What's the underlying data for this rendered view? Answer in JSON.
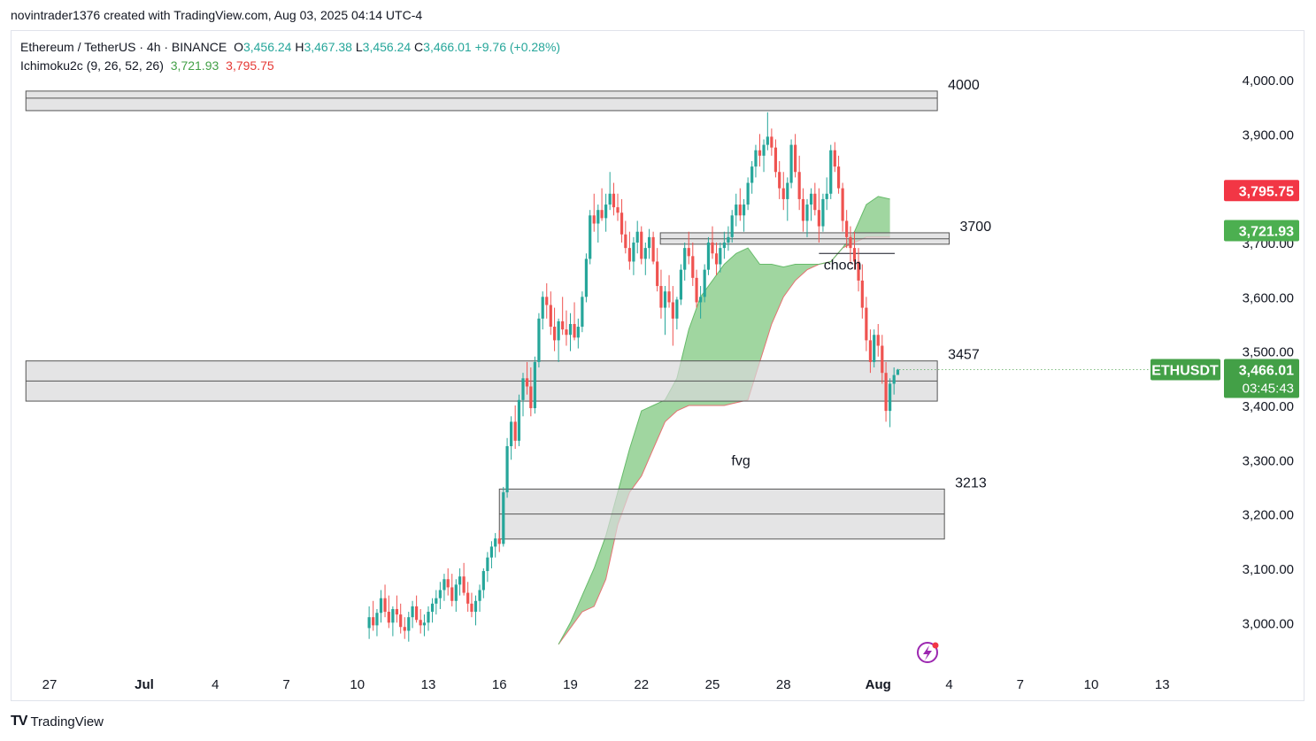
{
  "header": {
    "author_line": "novintrader1376 created with TradingView.com, Aug 03, 2025 04:14 UTC-4"
  },
  "legend": {
    "symbol": "Ethereum / TetherUS · 4h · BINANCE",
    "o_label": "O",
    "o": "3,456.24",
    "h_label": "H",
    "h": "3,467.38",
    "l_label": "L",
    "l": "3,456.24",
    "c_label": "C",
    "c": "3,466.01",
    "change": "+9.76 (+0.28%)",
    "indicator": "Ichimoku2c (9, 26, 52, 26)",
    "ind_val1": "3,721.93",
    "ind_val2": "3,795.75"
  },
  "footer": {
    "logo": "TV",
    "brand": "TradingView"
  },
  "colors": {
    "up": "#26a69a",
    "down": "#ef5350",
    "cloud": "#8fcf8f",
    "span_b": "#e57373",
    "zone_fill": "#d8d8da",
    "zone_border": "#555555"
  },
  "chart_data": {
    "type": "candlestick",
    "timeframe": "4h",
    "ylim": [
      2920,
      4110
    ],
    "y_ticks": [
      "4,000.00",
      "3,900.00",
      "3,800.00",
      "3,700.00",
      "3,600.00",
      "3,500.00",
      "3,400.00",
      "3,300.00",
      "3,200.00",
      "3,100.00",
      "3,000.00"
    ],
    "y_tick_values": [
      4000,
      3900,
      3800,
      3700,
      3600,
      3500,
      3400,
      3300,
      3200,
      3100,
      3000
    ],
    "x_ticks": [
      "27",
      "Jul",
      "4",
      "7",
      "10",
      "13",
      "16",
      "19",
      "22",
      "25",
      "28",
      "Aug",
      "4",
      "7",
      "10",
      "13"
    ],
    "x_tick_days": [
      -4,
      0,
      3,
      6,
      9,
      12,
      15,
      18,
      21,
      24,
      27,
      31,
      34,
      37,
      40,
      43
    ],
    "price_tags": [
      {
        "label": "3,795.75",
        "value": 3795.75,
        "color": "#f23645"
      },
      {
        "label": "3,721.93",
        "value": 3721.93,
        "color": "#4caf50"
      }
    ],
    "last_price": {
      "symbol": "ETHUSDT",
      "price": "3,466.01",
      "countdown": "03:45:43",
      "value": 3466.01,
      "color": "#43a047"
    },
    "zones": [
      {
        "label": "4000",
        "top": 3979,
        "bottom": 3943,
        "mid": 3966,
        "day_start": -5,
        "day_end": 33.5
      },
      {
        "label": "3700",
        "top": 3718,
        "bottom": 3697,
        "mid": 3707,
        "day_start": 21.8,
        "day_end": 34
      },
      {
        "label": "3457",
        "top": 3482,
        "bottom": 3408,
        "mid": 3445,
        "day_start": -5,
        "day_end": 33.5
      },
      {
        "label": "3213",
        "top": 3246,
        "bottom": 3154,
        "mid": 3200,
        "day_start": 15,
        "day_end": 33.8
      }
    ],
    "annotations": [
      {
        "text": "choch",
        "day": 28.7,
        "price": 3650
      },
      {
        "text": "fvg",
        "day": 24.8,
        "price": 3290
      }
    ],
    "choch_line": {
      "price": 3680,
      "day_start": 28.5,
      "day_end": 31.7
    },
    "candles": [
      [
        9.5,
        2990,
        3030,
        2970,
        3010
      ],
      [
        9.67,
        3010,
        3040,
        2985,
        2995
      ],
      [
        9.83,
        2995,
        3025,
        2975,
        3018
      ],
      [
        10.0,
        3018,
        3060,
        3000,
        3045
      ],
      [
        10.17,
        3045,
        3070,
        3010,
        3020
      ],
      [
        10.33,
        3020,
        3050,
        2990,
        3000
      ],
      [
        10.5,
        3000,
        3030,
        2975,
        3025
      ],
      [
        10.67,
        3025,
        3050,
        3000,
        3015
      ],
      [
        10.83,
        3015,
        3035,
        2980,
        2992
      ],
      [
        11.0,
        2992,
        3010,
        2970,
        2985
      ],
      [
        11.17,
        2985,
        3020,
        2965,
        3010
      ],
      [
        11.33,
        3010,
        3040,
        2990,
        3030
      ],
      [
        11.5,
        3030,
        3050,
        3000,
        3005
      ],
      [
        11.67,
        3005,
        3025,
        2980,
        2995
      ],
      [
        11.83,
        2995,
        3015,
        2975,
        3000
      ],
      [
        12.0,
        3000,
        3030,
        2985,
        3020
      ],
      [
        12.17,
        3020,
        3045,
        3000,
        3035
      ],
      [
        12.33,
        3035,
        3060,
        3015,
        3045
      ],
      [
        12.5,
        3045,
        3075,
        3025,
        3060
      ],
      [
        12.67,
        3060,
        3090,
        3040,
        3080
      ],
      [
        12.83,
        3080,
        3100,
        3050,
        3065
      ],
      [
        13.0,
        3065,
        3090,
        3030,
        3040
      ],
      [
        13.17,
        3040,
        3080,
        3020,
        3070
      ],
      [
        13.33,
        3070,
        3100,
        3050,
        3085
      ],
      [
        13.5,
        3085,
        3110,
        3050,
        3055
      ],
      [
        13.67,
        3055,
        3075,
        3020,
        3035
      ],
      [
        13.83,
        3035,
        3055,
        3010,
        3020
      ],
      [
        14.0,
        3020,
        3050,
        2995,
        3040
      ],
      [
        14.17,
        3040,
        3070,
        3020,
        3060
      ],
      [
        14.33,
        3060,
        3100,
        3045,
        3095
      ],
      [
        14.5,
        3095,
        3130,
        3075,
        3120
      ],
      [
        14.67,
        3120,
        3150,
        3100,
        3140
      ],
      [
        14.83,
        3140,
        3165,
        3120,
        3155
      ],
      [
        15.0,
        3155,
        3170,
        3130,
        3145
      ],
      [
        15.17,
        3145,
        3250,
        3140,
        3240
      ],
      [
        15.33,
        3240,
        3340,
        3230,
        3325
      ],
      [
        15.5,
        3325,
        3380,
        3300,
        3370
      ],
      [
        15.67,
        3370,
        3400,
        3320,
        3335
      ],
      [
        15.83,
        3335,
        3420,
        3325,
        3410
      ],
      [
        16.0,
        3410,
        3460,
        3380,
        3450
      ],
      [
        16.17,
        3450,
        3480,
        3420,
        3435
      ],
      [
        16.33,
        3435,
        3470,
        3380,
        3395
      ],
      [
        16.5,
        3395,
        3490,
        3385,
        3480
      ],
      [
        16.67,
        3480,
        3570,
        3470,
        3560
      ],
      [
        16.83,
        3560,
        3610,
        3540,
        3600
      ],
      [
        17.0,
        3600,
        3625,
        3560,
        3585
      ],
      [
        17.17,
        3585,
        3610,
        3530,
        3545
      ],
      [
        17.33,
        3545,
        3580,
        3500,
        3520
      ],
      [
        17.5,
        3520,
        3560,
        3480,
        3555
      ],
      [
        17.67,
        3555,
        3600,
        3530,
        3540
      ],
      [
        17.83,
        3540,
        3575,
        3510,
        3530
      ],
      [
        18.0,
        3530,
        3570,
        3500,
        3550
      ],
      [
        18.17,
        3550,
        3590,
        3520,
        3525
      ],
      [
        18.33,
        3525,
        3560,
        3505,
        3545
      ],
      [
        18.5,
        3545,
        3610,
        3535,
        3600
      ],
      [
        18.67,
        3600,
        3680,
        3590,
        3670
      ],
      [
        18.83,
        3670,
        3760,
        3660,
        3750
      ],
      [
        19.0,
        3750,
        3790,
        3720,
        3735
      ],
      [
        19.17,
        3735,
        3770,
        3700,
        3760
      ],
      [
        19.33,
        3760,
        3800,
        3740,
        3745
      ],
      [
        19.5,
        3745,
        3790,
        3720,
        3770
      ],
      [
        19.67,
        3770,
        3830,
        3760,
        3790
      ],
      [
        19.83,
        3790,
        3810,
        3750,
        3765
      ],
      [
        20.0,
        3765,
        3790,
        3740,
        3755
      ],
      [
        20.17,
        3755,
        3780,
        3700,
        3715
      ],
      [
        20.33,
        3715,
        3740,
        3680,
        3690
      ],
      [
        20.5,
        3690,
        3720,
        3650,
        3665
      ],
      [
        20.67,
        3665,
        3710,
        3640,
        3700
      ],
      [
        20.83,
        3700,
        3740,
        3680,
        3720
      ],
      [
        21.0,
        3720,
        3730,
        3660,
        3670
      ],
      [
        21.17,
        3670,
        3700,
        3640,
        3690
      ],
      [
        21.33,
        3690,
        3725,
        3670,
        3710
      ],
      [
        21.5,
        3710,
        3720,
        3660,
        3665
      ],
      [
        21.67,
        3665,
        3690,
        3610,
        3620
      ],
      [
        21.83,
        3620,
        3650,
        3560,
        3580
      ],
      [
        22.0,
        3580,
        3620,
        3530,
        3610
      ],
      [
        22.17,
        3610,
        3640,
        3580,
        3590
      ],
      [
        22.33,
        3590,
        3620,
        3510,
        3560
      ],
      [
        22.5,
        3560,
        3600,
        3540,
        3595
      ],
      [
        22.67,
        3595,
        3660,
        3585,
        3650
      ],
      [
        22.83,
        3650,
        3700,
        3630,
        3690
      ],
      [
        23.0,
        3690,
        3720,
        3660,
        3675
      ],
      [
        23.17,
        3675,
        3700,
        3620,
        3635
      ],
      [
        23.33,
        3635,
        3650,
        3580,
        3590
      ],
      [
        23.5,
        3590,
        3620,
        3560,
        3600
      ],
      [
        23.67,
        3600,
        3660,
        3590,
        3650
      ],
      [
        23.83,
        3650,
        3710,
        3640,
        3700
      ],
      [
        24.0,
        3700,
        3730,
        3670,
        3680
      ],
      [
        24.17,
        3680,
        3700,
        3640,
        3660
      ],
      [
        24.33,
        3660,
        3700,
        3645,
        3690
      ],
      [
        24.5,
        3690,
        3720,
        3670,
        3700
      ],
      [
        24.67,
        3700,
        3730,
        3685,
        3710
      ],
      [
        24.83,
        3710,
        3760,
        3700,
        3750
      ],
      [
        25.0,
        3750,
        3790,
        3730,
        3770
      ],
      [
        25.17,
        3770,
        3800,
        3740,
        3750
      ],
      [
        25.33,
        3750,
        3780,
        3720,
        3770
      ],
      [
        25.5,
        3770,
        3820,
        3760,
        3810
      ],
      [
        25.67,
        3810,
        3850,
        3790,
        3840
      ],
      [
        25.83,
        3840,
        3880,
        3820,
        3870
      ],
      [
        26.0,
        3870,
        3900,
        3840,
        3860
      ],
      [
        26.17,
        3860,
        3890,
        3830,
        3880
      ],
      [
        26.33,
        3880,
        3940,
        3870,
        3895
      ],
      [
        26.5,
        3895,
        3910,
        3860,
        3875
      ],
      [
        26.67,
        3875,
        3890,
        3820,
        3830
      ],
      [
        26.83,
        3830,
        3850,
        3780,
        3800
      ],
      [
        27.0,
        3800,
        3830,
        3760,
        3780
      ],
      [
        27.17,
        3780,
        3820,
        3740,
        3810
      ],
      [
        27.33,
        3810,
        3890,
        3800,
        3880
      ],
      [
        27.5,
        3880,
        3900,
        3820,
        3830
      ],
      [
        27.67,
        3830,
        3860,
        3760,
        3780
      ],
      [
        27.83,
        3780,
        3800,
        3720,
        3740
      ],
      [
        28.0,
        3740,
        3780,
        3710,
        3770
      ],
      [
        28.17,
        3770,
        3800,
        3740,
        3790
      ],
      [
        28.33,
        3790,
        3810,
        3750,
        3760
      ],
      [
        28.5,
        3760,
        3800,
        3700,
        3730
      ],
      [
        28.67,
        3730,
        3790,
        3720,
        3780
      ],
      [
        28.83,
        3780,
        3820,
        3760,
        3790
      ],
      [
        29.0,
        3790,
        3880,
        3780,
        3870
      ],
      [
        29.17,
        3870,
        3885,
        3830,
        3840
      ],
      [
        29.33,
        3840,
        3860,
        3790,
        3800
      ],
      [
        29.5,
        3800,
        3810,
        3720,
        3740
      ],
      [
        29.67,
        3740,
        3760,
        3690,
        3710
      ],
      [
        29.83,
        3710,
        3730,
        3660,
        3690
      ],
      [
        30.0,
        3690,
        3720,
        3650,
        3665
      ],
      [
        30.17,
        3665,
        3690,
        3610,
        3630
      ],
      [
        30.33,
        3630,
        3660,
        3560,
        3580
      ],
      [
        30.5,
        3580,
        3600,
        3500,
        3520
      ],
      [
        30.67,
        3520,
        3540,
        3460,
        3480
      ],
      [
        30.83,
        3480,
        3540,
        3470,
        3530
      ],
      [
        31.0,
        3530,
        3550,
        3490,
        3510
      ],
      [
        31.17,
        3510,
        3530,
        3440,
        3460
      ],
      [
        31.33,
        3460,
        3480,
        3370,
        3390
      ],
      [
        31.5,
        3390,
        3450,
        3360,
        3440
      ],
      [
        31.67,
        3440,
        3470,
        3420,
        3456
      ],
      [
        31.83,
        3456.24,
        3467.38,
        3456.24,
        3466.01
      ]
    ],
    "cloud": {
      "span_a": [
        [
          17.5,
          2960
        ],
        [
          18.0,
          3000
        ],
        [
          18.5,
          3050
        ],
        [
          19.0,
          3100
        ],
        [
          19.5,
          3160
        ],
        [
          20.0,
          3240
        ],
        [
          20.5,
          3320
        ],
        [
          21.0,
          3390
        ],
        [
          21.5,
          3400
        ],
        [
          22.0,
          3410
        ],
        [
          22.5,
          3450
        ],
        [
          23.0,
          3540
        ],
        [
          23.5,
          3600
        ],
        [
          24.0,
          3630
        ],
        [
          24.5,
          3660
        ],
        [
          25.0,
          3680
        ],
        [
          25.5,
          3690
        ],
        [
          26.0,
          3660
        ],
        [
          26.5,
          3660
        ],
        [
          27.0,
          3655
        ],
        [
          27.5,
          3660
        ],
        [
          28.0,
          3660
        ],
        [
          28.5,
          3660
        ],
        [
          29.0,
          3665
        ],
        [
          29.5,
          3690
        ],
        [
          30.0,
          3720
        ],
        [
          30.5,
          3770
        ],
        [
          31.0,
          3785
        ],
        [
          31.5,
          3780
        ]
      ],
      "span_b": [
        [
          17.5,
          2960
        ],
        [
          18.0,
          2990
        ],
        [
          18.5,
          3020
        ],
        [
          19.0,
          3030
        ],
        [
          19.5,
          3080
        ],
        [
          20.0,
          3180
        ],
        [
          20.5,
          3240
        ],
        [
          21.0,
          3270
        ],
        [
          21.5,
          3320
        ],
        [
          22.0,
          3370
        ],
        [
          22.5,
          3390
        ],
        [
          23.0,
          3400
        ],
        [
          23.5,
          3400
        ],
        [
          24.0,
          3400
        ],
        [
          24.5,
          3400
        ],
        [
          25.0,
          3405
        ],
        [
          25.5,
          3410
        ],
        [
          26.0,
          3480
        ],
        [
          26.5,
          3550
        ],
        [
          27.0,
          3600
        ],
        [
          27.5,
          3630
        ],
        [
          28.0,
          3650
        ],
        [
          28.5,
          3660
        ],
        [
          29.0,
          3665
        ],
        [
          29.5,
          3690
        ],
        [
          30.0,
          3700
        ],
        [
          30.5,
          3710
        ],
        [
          31.0,
          3710
        ],
        [
          31.5,
          3710
        ]
      ]
    }
  }
}
